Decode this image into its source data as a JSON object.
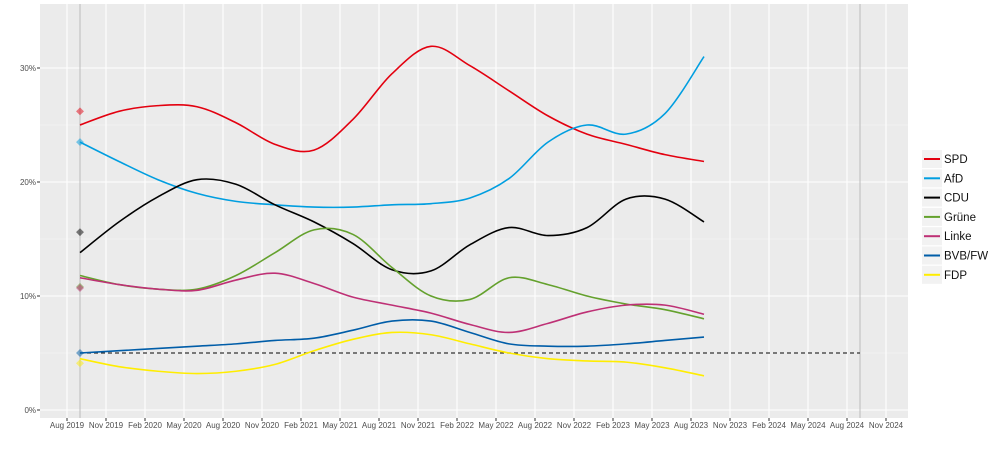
{
  "chart_data": {
    "type": "line",
    "title": "",
    "xlabel": "",
    "ylabel": "",
    "ylim": [
      0,
      35
    ],
    "xlim": [
      "2019-06",
      "2024-12"
    ],
    "grid": true,
    "legend_position": "right",
    "y_ticks": [
      {
        "v": 0,
        "label": "0%"
      },
      {
        "v": 10,
        "label": "10%"
      },
      {
        "v": 20,
        "label": "20%"
      },
      {
        "v": 30,
        "label": "30%"
      }
    ],
    "x_ticks": [
      {
        "d": "2019-08",
        "label": "Aug 2019"
      },
      {
        "d": "2019-11",
        "label": "Nov 2019"
      },
      {
        "d": "2020-02",
        "label": "Feb 2020"
      },
      {
        "d": "2020-05",
        "label": "May 2020"
      },
      {
        "d": "2020-08",
        "label": "Aug 2020"
      },
      {
        "d": "2020-11",
        "label": "Nov 2020"
      },
      {
        "d": "2021-02",
        "label": "Feb 2021"
      },
      {
        "d": "2021-05",
        "label": "May 2021"
      },
      {
        "d": "2021-08",
        "label": "Aug 2021"
      },
      {
        "d": "2021-11",
        "label": "Nov 2021"
      },
      {
        "d": "2022-02",
        "label": "Feb 2022"
      },
      {
        "d": "2022-05",
        "label": "May 2022"
      },
      {
        "d": "2022-08",
        "label": "Aug 2022"
      },
      {
        "d": "2022-11",
        "label": "Nov 2022"
      },
      {
        "d": "2023-02",
        "label": "Feb 2023"
      },
      {
        "d": "2023-05",
        "label": "May 2023"
      },
      {
        "d": "2023-08",
        "label": "Aug 2023"
      },
      {
        "d": "2023-11",
        "label": "Nov 2023"
      },
      {
        "d": "2024-02",
        "label": "Feb 2024"
      },
      {
        "d": "2024-05",
        "label": "May 2024"
      },
      {
        "d": "2024-08",
        "label": "Aug 2024"
      },
      {
        "d": "2024-11",
        "label": "Nov 2024"
      }
    ],
    "election_lines": [
      "2019-09",
      "2024-09"
    ],
    "threshold": 5,
    "x": [
      "2019-09",
      "2019-12",
      "2020-03",
      "2020-06",
      "2020-09",
      "2020-12",
      "2021-03",
      "2021-06",
      "2021-09",
      "2021-12",
      "2022-03",
      "2022-06",
      "2022-09",
      "2022-12",
      "2023-03",
      "2023-06",
      "2023-09"
    ],
    "series": [
      {
        "name": "SPD",
        "color": "#E3000F",
        "election": 26.2,
        "values": [
          25,
          26.2,
          26.7,
          26.6,
          25.2,
          23.3,
          22.8,
          25.5,
          29.5,
          31.9,
          30.2,
          28,
          25.8,
          24.2,
          23.3,
          22.4,
          21.8
        ]
      },
      {
        "name": "AfD",
        "color": "#009EE0",
        "election": 23.5,
        "values": [
          23.5,
          21.8,
          20.2,
          19,
          18.3,
          18,
          17.8,
          17.8,
          18,
          18.1,
          18.6,
          20.3,
          23.5,
          25,
          24.2,
          26,
          31
        ]
      },
      {
        "name": "CDU",
        "color": "#000000",
        "election": 15.6,
        "values": [
          13.8,
          16.5,
          18.7,
          20.2,
          19.8,
          18,
          16.5,
          14.6,
          12.3,
          12.2,
          14.5,
          16,
          15.3,
          16,
          18.5,
          18.5,
          16.5
        ]
      },
      {
        "name": "Grüne",
        "color": "#64A12D",
        "election": 10.8,
        "values": [
          11.8,
          11,
          10.6,
          10.6,
          11.8,
          13.8,
          15.8,
          15.4,
          12.5,
          10,
          9.7,
          11.6,
          11,
          10,
          9.3,
          8.8,
          8
        ]
      },
      {
        "name": "Linke",
        "color": "#BE3075",
        "election": 10.7,
        "values": [
          11.6,
          11,
          10.6,
          10.5,
          11.4,
          12,
          11.1,
          9.9,
          9.2,
          8.5,
          7.5,
          6.8,
          7.6,
          8.6,
          9.2,
          9.2,
          8.4
        ]
      },
      {
        "name": "BVB/FW",
        "color": "#005DA8",
        "election": 5,
        "values": [
          5,
          5.2,
          5.4,
          5.6,
          5.8,
          6.1,
          6.3,
          7,
          7.8,
          7.8,
          6.8,
          5.8,
          5.6,
          5.6,
          5.8,
          6.1,
          6.4
        ]
      },
      {
        "name": "FDP",
        "color": "#FFED00",
        "election": 4.1,
        "values": [
          4.5,
          3.8,
          3.4,
          3.2,
          3.4,
          4,
          5.2,
          6.2,
          6.8,
          6.6,
          5.8,
          5,
          4.5,
          4.3,
          4.2,
          3.7,
          3
        ]
      }
    ]
  }
}
